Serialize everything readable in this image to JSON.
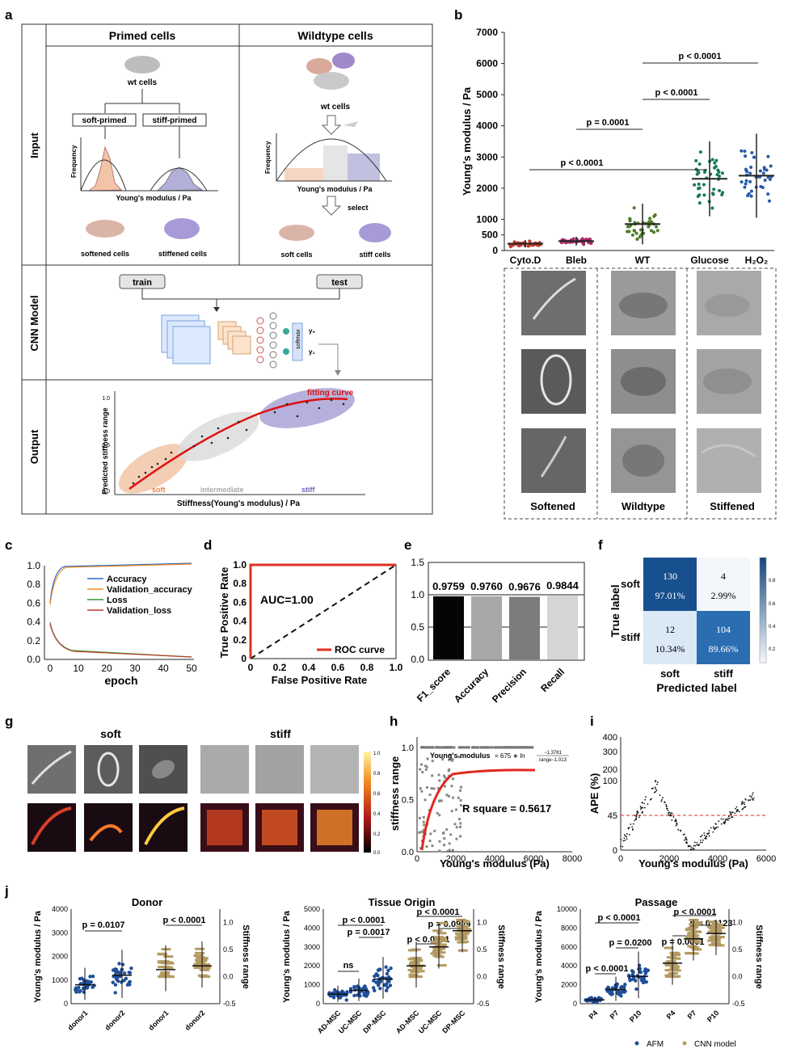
{
  "panel_labels": [
    "a",
    "b",
    "c",
    "d",
    "e",
    "f",
    "g",
    "h",
    "i",
    "j"
  ],
  "a": {
    "rows": [
      "Input",
      "CNN Model",
      "Output"
    ],
    "primed_title": "Primed cells",
    "wildtype_title": "Wildtype cells",
    "wt_cells": "wt cells",
    "soft_primed": "soft-primed",
    "stiff_primed": "stiff-primed",
    "frequency": "Frequency",
    "youngs_modulus": "Young's modulus / Pa",
    "select": "select",
    "softened_cells": "softened cells",
    "stiffened_cells": "stiffened cells",
    "soft_cells": "soft cells",
    "stiff_cells": "stiff cells",
    "train": "train",
    "test": "test",
    "y0": "y₀",
    "y1": "y₁",
    "softmax": "softmax",
    "fitting_curve": "fitting curve",
    "pred_ylabel": "Predicted stiffness range",
    "pred_xlabel": "Stiffness(Young's modulus) / Pa",
    "ytick_top": "1.0",
    "ytick_mid": "0.5",
    "ytick_bot": "0.0",
    "group_soft": "soft",
    "group_intermediate": "intermediate",
    "group_stiff": "stiff"
  },
  "b": {
    "ylabel": "Young's modulus / Pa",
    "yticks": [
      "7000",
      "6000",
      "5000",
      "4000",
      "3000",
      "2000",
      "1000",
      "500",
      "0"
    ],
    "categories": [
      "Cyto.D",
      "Bleb",
      "WT",
      "Glucose",
      "H₂O₂"
    ],
    "pvals": [
      "p < 0.0001",
      "p = 0.0001",
      "p < 0.0001",
      "p < 0.0001",
      "p < 0.0001"
    ],
    "image_groups": [
      "Softened",
      "Wildtype",
      "Stiffened"
    ]
  },
  "c": {
    "xlabel": "epoch",
    "legend": [
      "Accuracy",
      "Validation_accuracy",
      "Loss",
      "Validation_loss"
    ],
    "yticks": [
      "1.0",
      "0.8",
      "0.6",
      "0.4",
      "0.2",
      "0.0"
    ],
    "xticks": [
      "0",
      "10",
      "20",
      "30",
      "40",
      "50"
    ]
  },
  "d": {
    "xlabel": "False Positive Rate",
    "ylabel": "True Positive Rate",
    "auc": "AUC=1.00",
    "legend": "ROC curve",
    "ticks": [
      "0",
      "0.2",
      "0.4",
      "0.6",
      "0.8",
      "1.0"
    ]
  },
  "e": {
    "labels": [
      "0.9759",
      "0.9760",
      "0.9676",
      "0.9844"
    ],
    "cats": [
      "F1_score",
      "Accuracy",
      "Precision",
      "Recall"
    ],
    "yticks": [
      "1.5",
      "1.0",
      "0.5",
      "0.0"
    ]
  },
  "f": {
    "cells": [
      [
        "130",
        "97.01%"
      ],
      [
        "4",
        "2.99%"
      ],
      [
        "12",
        "10.34%"
      ],
      [
        "104",
        "89.66%"
      ]
    ],
    "rows": [
      "soft",
      "stiff"
    ],
    "cols": [
      "soft",
      "stiff"
    ],
    "xlabel": "Predicted label",
    "ylabel": "True label",
    "cbar": [
      "0.8",
      "0.6",
      "0.4",
      "0.2"
    ]
  },
  "g": {
    "soft": "soft",
    "stiff": "stiff",
    "cbar": [
      "1.0",
      "0.8",
      "0.6",
      "0.4",
      "0.2",
      "0.0"
    ]
  },
  "h": {
    "xlabel": "Young's modulus (Pa)",
    "ylabel": "stiffness range",
    "eq_lhs": "Young's modulus",
    "eq_mid": "= 675 ∗ ln",
    "eq_num": "−1.3781",
    "eq_den": "range−1.013",
    "rsq": "R square = 0.5617",
    "xticks": [
      "0",
      "2000",
      "4000",
      "6000",
      "8000"
    ],
    "yticks": [
      "1.0",
      "0.5",
      "0.0"
    ]
  },
  "i": {
    "xlabel": "Young's modulus (Pa)",
    "ylabel": "APE (%)",
    "yticks": [
      "400",
      "300",
      "200",
      "100",
      "45",
      "0"
    ],
    "xticks": [
      "0",
      "2000",
      "4000",
      "6000"
    ]
  },
  "j": {
    "left_ylabel": "Young's modulus / Pa",
    "right_ylabel": "Stiffness range",
    "donor": {
      "title": "Donor",
      "cats": [
        "donor1",
        "donor2",
        "donor1",
        "donor2"
      ],
      "p": [
        "p = 0.0107",
        "p < 0.0001"
      ],
      "yticks": [
        "4000",
        "3000",
        "2000",
        "1000",
        "0"
      ],
      "rticks": [
        "1.0",
        "0.5",
        "0.0",
        "-0.5"
      ]
    },
    "tissue": {
      "title": "Tissue Origin",
      "cats": [
        "AD-MSC",
        "UC-MSC",
        "DP-MSC",
        "AD-MSC",
        "UC-MSC",
        "DP-MSC"
      ],
      "p": [
        "ns",
        "p < 0.0001",
        "p = 0.0017",
        "p < 0.0001",
        "p = 0.0949",
        "p < 0.0001"
      ],
      "yticks": [
        "5000",
        "4000",
        "3000",
        "2000",
        "1000",
        "0"
      ],
      "rticks": [
        "1.0",
        "0.5",
        "0.0",
        "-0.5"
      ]
    },
    "passage": {
      "title": "Passage",
      "cats": [
        "P4",
        "P7",
        "P10",
        "P4",
        "P7",
        "P10"
      ],
      "p": [
        "p < 0.0001",
        "p = 0.0200",
        "p < 0.0001",
        "p = 0.0001",
        "p = 0.0123",
        "p < 0.0001"
      ],
      "yticks": [
        "10000",
        "8000",
        "6000",
        "4000",
        "2000",
        "0"
      ],
      "rticks": [
        "1.0",
        "0.5",
        "0.0",
        "-0.5"
      ]
    },
    "legend": [
      "AFM",
      "CNN model"
    ]
  },
  "chart_data": [
    {
      "panel": "b",
      "type": "scatter",
      "ylabel": "Young's modulus / Pa",
      "ylim": [
        0,
        7000
      ],
      "categories": [
        "Cyto.D",
        "Bleb",
        "WT",
        "Glucose",
        "H₂O₂"
      ],
      "means": [
        220,
        300,
        850,
        2300,
        2400
      ],
      "sd": [
        120,
        140,
        650,
        1200,
        1350
      ]
    },
    {
      "panel": "c",
      "type": "line",
      "xlabel": "epoch",
      "ylim": [
        0,
        1.0
      ],
      "xlim": [
        0,
        50
      ],
      "series": [
        {
          "name": "Accuracy",
          "final": 0.97
        },
        {
          "name": "Validation_accuracy",
          "final": 0.97
        },
        {
          "name": "Loss",
          "final": 0.06
        },
        {
          "name": "Validation_loss",
          "final": 0.06
        }
      ]
    },
    {
      "panel": "d",
      "type": "line",
      "xlabel": "False Positive Rate",
      "ylabel": "True Positive Rate",
      "auc": 1.0,
      "series": [
        {
          "name": "ROC curve",
          "x": [
            0,
            0,
            1
          ],
          "y": [
            0,
            1,
            1
          ]
        }
      ]
    },
    {
      "panel": "e",
      "type": "bar",
      "categories": [
        "F1_score",
        "Accuracy",
        "Precision",
        "Recall"
      ],
      "values": [
        0.9759,
        0.976,
        0.9676,
        0.9844
      ],
      "ylim": [
        0,
        1.5
      ]
    },
    {
      "panel": "f",
      "type": "heatmap",
      "rows": [
        "soft",
        "stiff"
      ],
      "cols": [
        "soft",
        "stiff"
      ],
      "values": [
        [
          130,
          4
        ],
        [
          12,
          104
        ]
      ]
    },
    {
      "panel": "h",
      "type": "scatter",
      "xlabel": "Young's modulus (Pa)",
      "ylabel": "stiffness range",
      "xlim": [
        0,
        8000
      ],
      "ylim": [
        0,
        1.1
      ]
    },
    {
      "panel": "i",
      "type": "scatter",
      "xlabel": "Young's modulus (Pa)",
      "ylabel": "APE (%)",
      "xlim": [
        0,
        6000
      ]
    },
    {
      "panel": "j-donor",
      "type": "scatter",
      "categories": [
        "donor1",
        "donor2"
      ],
      "afm_means": [
        800,
        1200
      ],
      "cnn_means": [
        0.13,
        0.2
      ]
    },
    {
      "panel": "j-tissue",
      "type": "scatter",
      "categories": [
        "AD-MSC",
        "UC-MSC",
        "DP-MSC"
      ],
      "afm_means": [
        500,
        700,
        1300
      ],
      "cnn_means": [
        0.2,
        0.55,
        0.85
      ]
    },
    {
      "panel": "j-passage",
      "type": "scatter",
      "categories": [
        "P4",
        "P7",
        "P10"
      ],
      "afm_means": [
        400,
        1500,
        2900
      ],
      "cnn_means": [
        0.25,
        0.7,
        0.8
      ]
    }
  ]
}
